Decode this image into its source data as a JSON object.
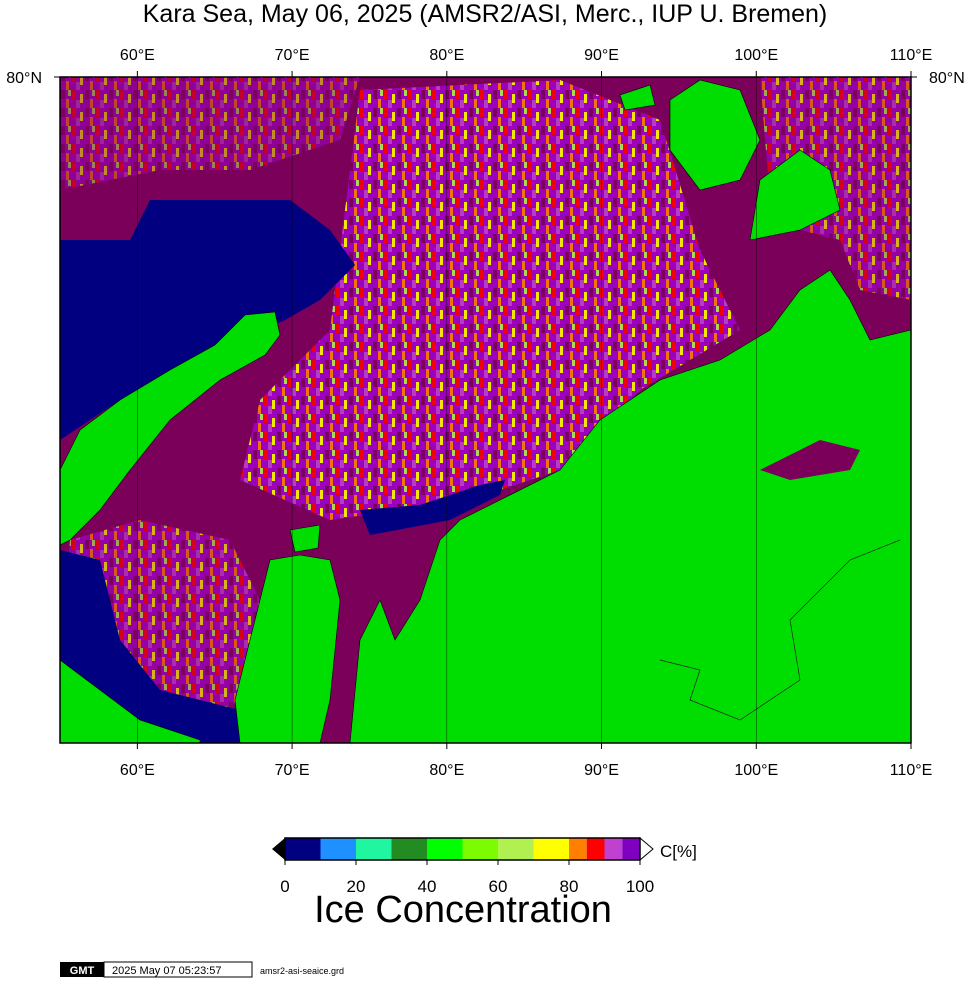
{
  "title": "Kara Sea, May 06, 2025 (AMSR2/ASI, Merc., IUP U. Bremen)",
  "map": {
    "lonlim": [
      55,
      110
    ],
    "lon_ticks": [
      {
        "value": 60,
        "label": "60°E"
      },
      {
        "value": 70,
        "label": "70°E"
      },
      {
        "value": 80,
        "label": "80°E"
      },
      {
        "value": 90,
        "label": "90°E"
      },
      {
        "value": 100,
        "label": "100°E"
      },
      {
        "value": 110,
        "label": "110°E"
      }
    ],
    "lat_ticks": [
      {
        "value": 80,
        "label": "80°N"
      }
    ]
  },
  "colorbar": {
    "title": "Ice Concentration",
    "unit": "C[%]",
    "lim": [
      0,
      100
    ],
    "ticks": [
      0,
      20,
      40,
      60,
      80,
      100
    ],
    "bins": [
      0,
      10,
      20,
      30,
      40,
      50,
      60,
      70,
      80,
      85,
      90,
      95,
      100
    ],
    "colors": [
      "#000080",
      "#1e90ff",
      "#20f5a0",
      "#228b22",
      "#00ff00",
      "#7cfc00",
      "#b0f050",
      "#ffff00",
      "#ff8000",
      "#ff0000",
      "#c040d0",
      "#8000c0"
    ]
  },
  "footer": {
    "logo": "GMT",
    "timestamp": "2025 May 07 05:23:57",
    "file": "amsr2-asi-seaice.grd"
  }
}
